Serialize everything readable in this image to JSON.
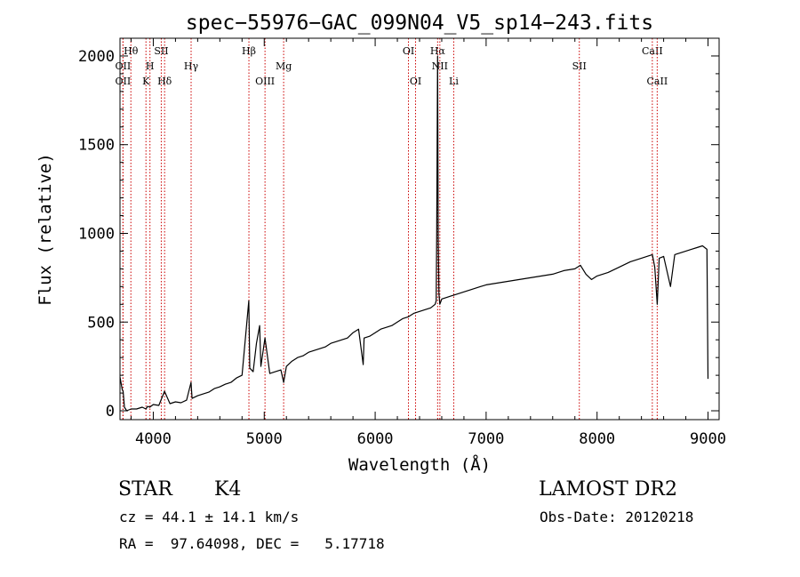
{
  "chart_data": {
    "type": "line",
    "title": "spec−55976−GAC_099N04_V5_sp14−243.fits",
    "xlabel": "Wavelength (Å)",
    "ylabel": "Flux (relative)",
    "xlim": [
      3700,
      9100
    ],
    "ylim": [
      -50,
      2100
    ],
    "x_ticks": [
      4000,
      5000,
      6000,
      7000,
      8000,
      9000
    ],
    "y_ticks": [
      0,
      500,
      1000,
      1500,
      2000
    ],
    "x_tick_labels": [
      "4000",
      "5000",
      "6000",
      "7000",
      "8000",
      "9000"
    ],
    "y_tick_labels": [
      "0",
      "500",
      "1000",
      "1500",
      "2000"
    ],
    "series": [
      {
        "x": [
          3700,
          3720,
          3728,
          3740,
          3760,
          3800,
          3850,
          3900,
          3933,
          3950,
          3968,
          4000,
          4050,
          4101,
          4150,
          4200,
          4250,
          4300,
          4340,
          4350,
          4400,
          4450,
          4500,
          4550,
          4600,
          4650,
          4700,
          4750,
          4800,
          4861,
          4870,
          4900,
          4930,
          4959,
          4970,
          5007,
          5050,
          5100,
          5150,
          5175,
          5200,
          5250,
          5300,
          5350,
          5400,
          5450,
          5500,
          5550,
          5600,
          5650,
          5700,
          5750,
          5800,
          5850,
          5892,
          5900,
          5950,
          6000,
          6050,
          6100,
          6150,
          6200,
          6250,
          6300,
          6350,
          6400,
          6450,
          6500,
          6540,
          6550,
          6555,
          6563,
          6568,
          6575,
          6583,
          6600,
          6650,
          6700,
          6750,
          6800,
          6850,
          6900,
          6950,
          7000,
          7100,
          7200,
          7300,
          7400,
          7500,
          7600,
          7700,
          7800,
          7850,
          7900,
          7950,
          8000,
          8100,
          8200,
          8300,
          8400,
          8498,
          8520,
          8542,
          8560,
          8600,
          8662,
          8700,
          8750,
          8800,
          8850,
          8900,
          8950,
          8990,
          9000
        ],
        "y": [
          190,
          120,
          110,
          20,
          0,
          10,
          10,
          20,
          10,
          25,
          20,
          35,
          30,
          110,
          40,
          50,
          45,
          60,
          160,
          70,
          85,
          95,
          105,
          125,
          135,
          150,
          160,
          185,
          200,
          620,
          240,
          220,
          380,
          480,
          250,
          410,
          210,
          220,
          230,
          160,
          250,
          280,
          300,
          310,
          330,
          340,
          350,
          360,
          380,
          390,
          400,
          410,
          440,
          460,
          260,
          410,
          420,
          440,
          460,
          470,
          480,
          500,
          520,
          530,
          550,
          560,
          570,
          580,
          600,
          620,
          1000,
          2000,
          980,
          660,
          600,
          630,
          640,
          650,
          660,
          670,
          680,
          690,
          700,
          710,
          720,
          730,
          740,
          750,
          760,
          770,
          790,
          800,
          820,
          770,
          740,
          760,
          780,
          810,
          840,
          860,
          880,
          810,
          600,
          860,
          870,
          700,
          880,
          890,
          900,
          910,
          920,
          930,
          910,
          180
        ]
      }
    ],
    "line_markers": [
      {
        "label": "Hθ",
        "x": 3798,
        "row": 0
      },
      {
        "label": "OII",
        "x": 3727,
        "row": 1
      },
      {
        "label": "OII",
        "x": 3727,
        "row": 2
      },
      {
        "label": "H",
        "x": 3970,
        "row": 1
      },
      {
        "label": "K",
        "x": 3934,
        "row": 2
      },
      {
        "label": "SII",
        "x": 4072,
        "row": 0
      },
      {
        "label": "Hδ",
        "x": 4102,
        "row": 2
      },
      {
        "label": "Hγ",
        "x": 4341,
        "row": 1
      },
      {
        "label": "Hβ",
        "x": 4862,
        "row": 0
      },
      {
        "label": "OIII",
        "x": 5007,
        "row": 2
      },
      {
        "label": "Mg",
        "x": 5175,
        "row": 1
      },
      {
        "label": "OI",
        "x": 6300,
        "row": 0
      },
      {
        "label": "OI",
        "x": 6364,
        "row": 2
      },
      {
        "label": "Hα",
        "x": 6563,
        "row": 0
      },
      {
        "label": "NII",
        "x": 6583,
        "row": 1
      },
      {
        "label": "Li",
        "x": 6708,
        "row": 2
      },
      {
        "label": "SII",
        "x": 7840,
        "row": 1
      },
      {
        "label": "CaII",
        "x": 8498,
        "row": 0
      },
      {
        "label": "CaII",
        "x": 8542,
        "row": 2
      }
    ],
    "marker_color": "#cc0000",
    "grid": false
  },
  "info": {
    "object_class": "STAR",
    "subclass": "K4",
    "survey": "LAMOST DR2",
    "redshift": "cz = 44.1 ± 14.1 km/s",
    "obs_date": "Obs-Date: 20120218",
    "coords": "RA =  97.64098, DEC =   5.17718"
  }
}
